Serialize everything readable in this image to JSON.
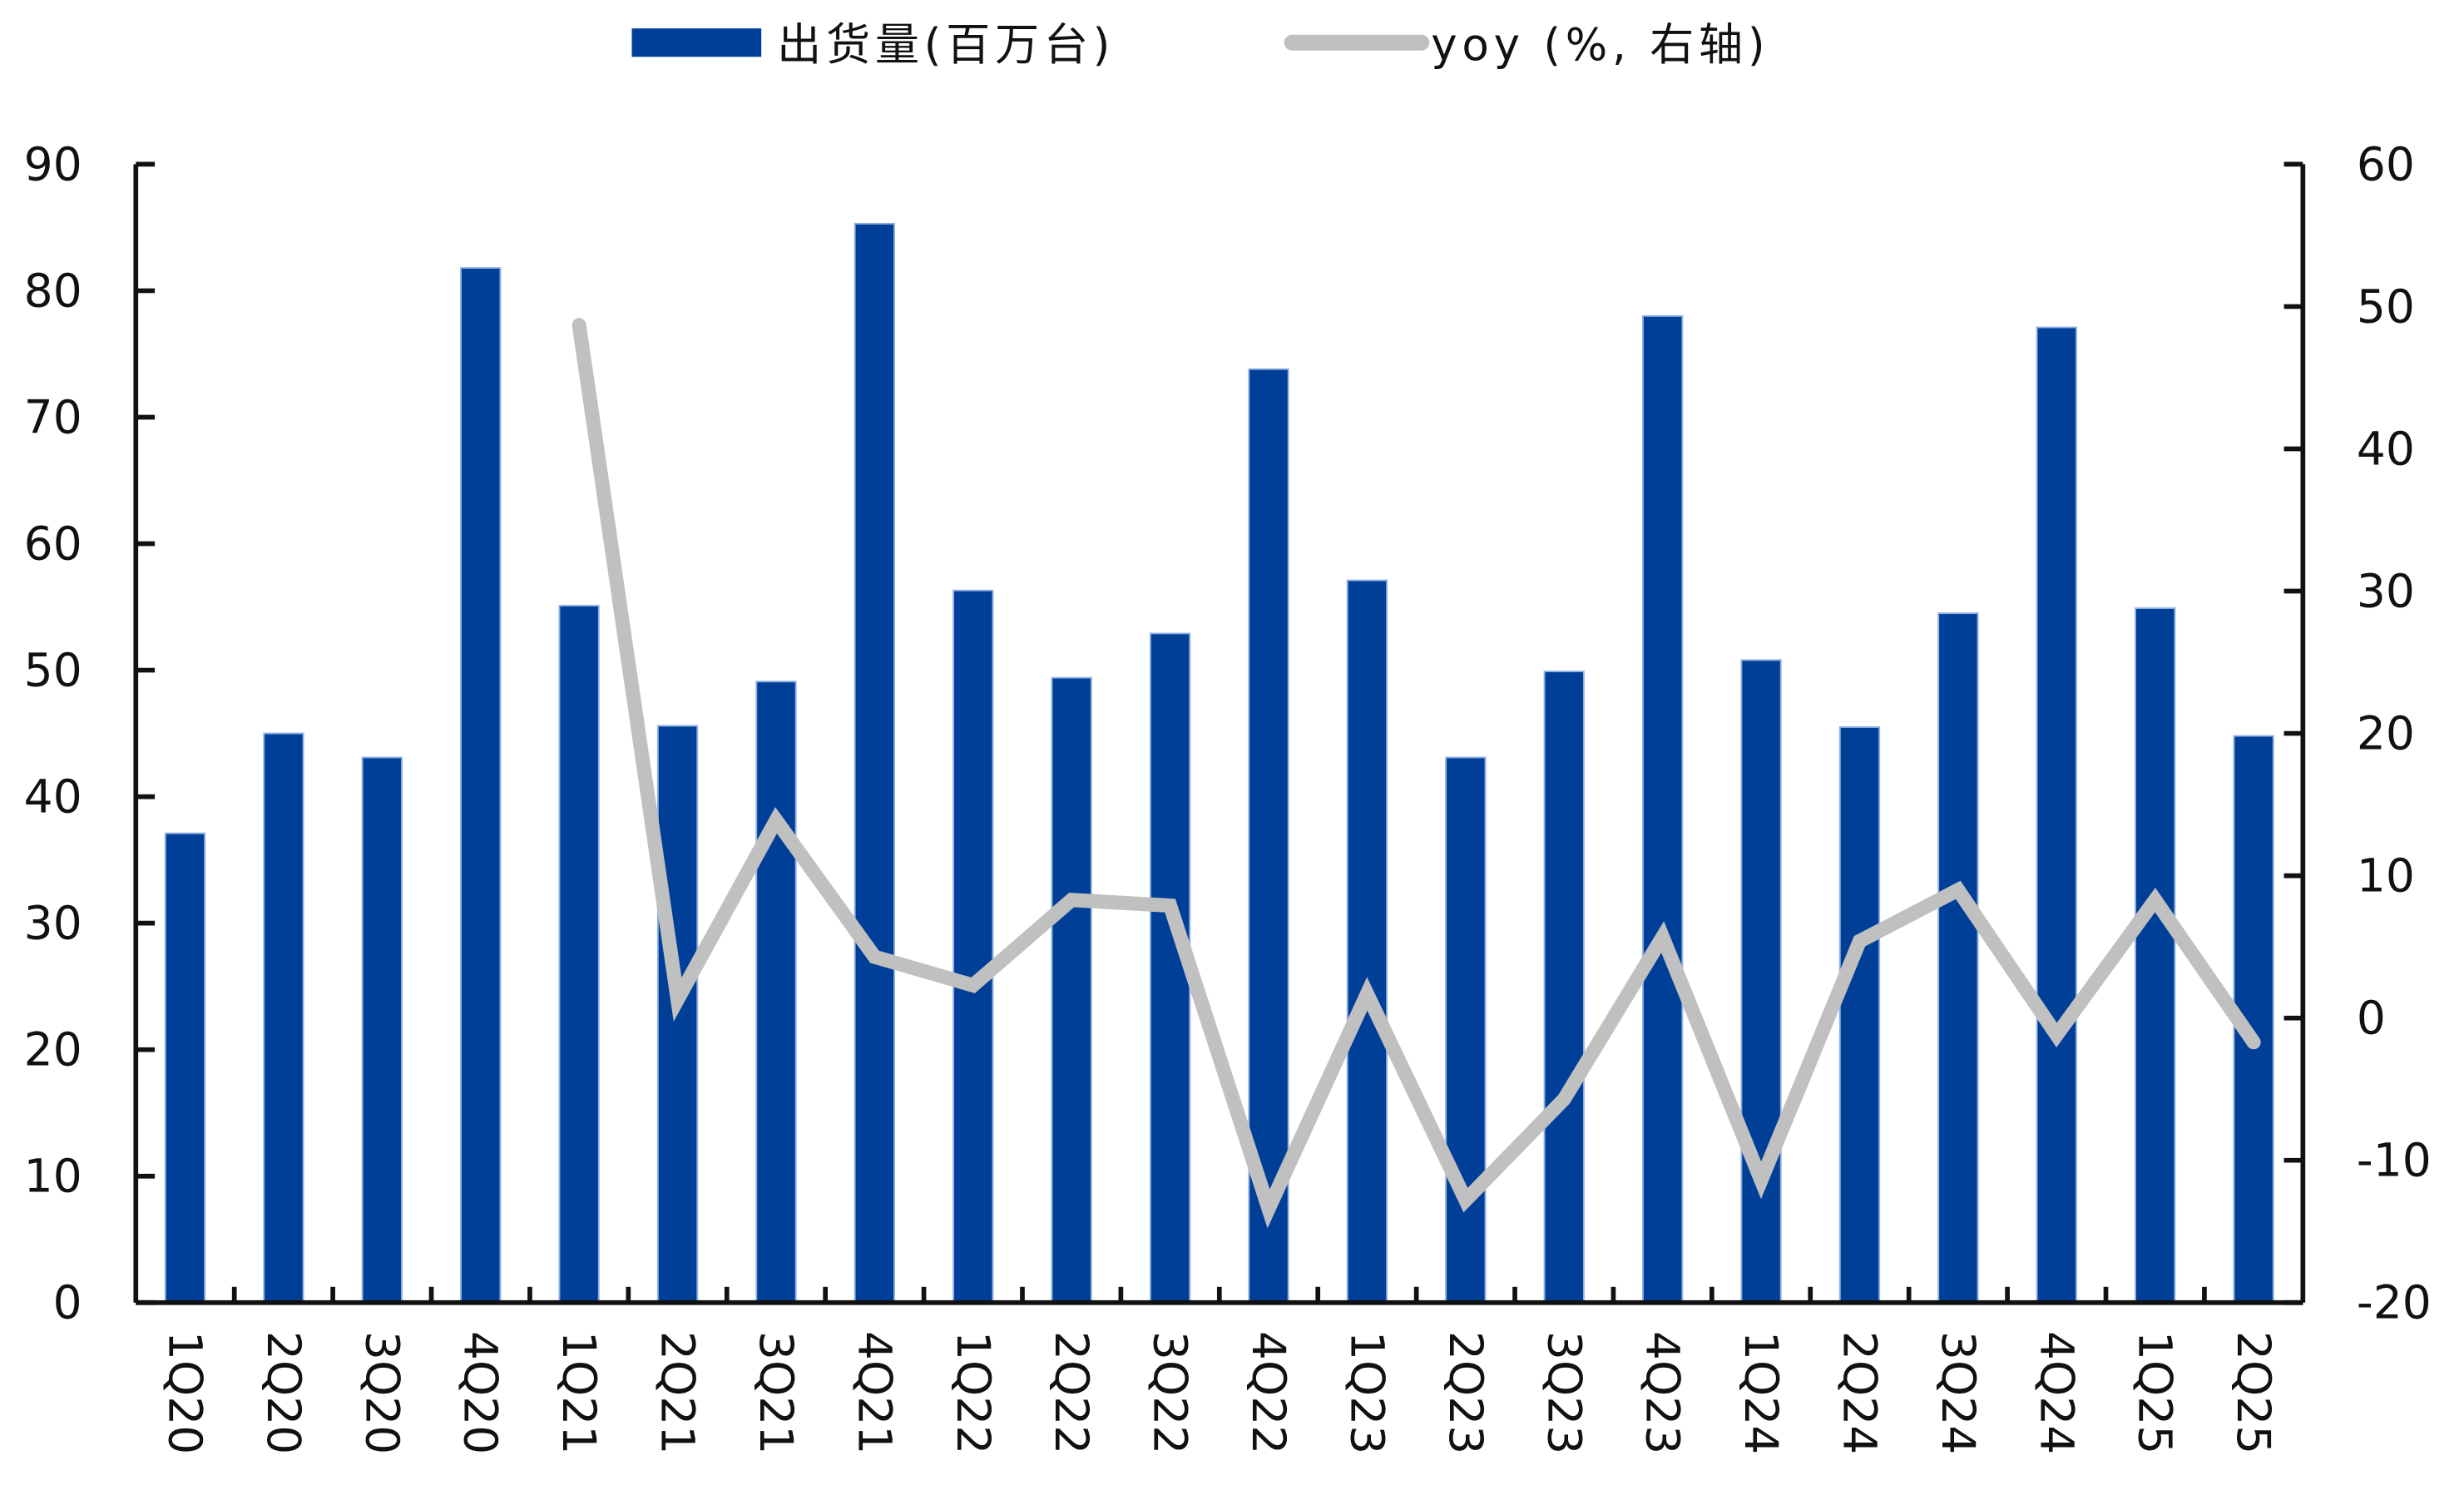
{
  "chart_data": {
    "type": "bar+line",
    "title": "",
    "legend": {
      "position": "top",
      "entries": [
        {
          "name": "出货量(百万台)",
          "type": "bar",
          "color": "#003f98"
        },
        {
          "name": "yoy (%, 右轴)",
          "type": "line",
          "color": "#c0c0c0"
        }
      ]
    },
    "categories": [
      "1Q20",
      "2Q20",
      "3Q20",
      "4Q20",
      "1Q21",
      "2Q21",
      "3Q21",
      "4Q21",
      "1Q22",
      "2Q22",
      "3Q22",
      "4Q22",
      "1Q23",
      "2Q23",
      "3Q23",
      "4Q23",
      "1Q24",
      "2Q24",
      "3Q24",
      "4Q24",
      "1Q25",
      "2Q25"
    ],
    "series": [
      {
        "name": "出货量(百万台)",
        "axis": "left",
        "type": "bar",
        "color": "#003f98",
        "values": [
          37.1,
          45.0,
          43.1,
          81.8,
          55.1,
          45.6,
          49.1,
          85.3,
          56.3,
          49.4,
          52.9,
          73.8,
          57.1,
          43.1,
          49.9,
          78.0,
          50.8,
          45.5,
          54.5,
          77.1,
          54.9,
          44.8
        ]
      },
      {
        "name": "yoy (%, 右轴)",
        "axis": "right",
        "type": "line",
        "color": "#c0c0c0",
        "values": [
          null,
          null,
          null,
          null,
          48.7,
          1.3,
          13.9,
          4.3,
          2.3,
          8.3,
          7.9,
          -13.4,
          1.7,
          -12.8,
          -5.7,
          5.7,
          -11.4,
          5.4,
          9.0,
          -1.2,
          8.3,
          -1.7
        ]
      }
    ],
    "y_left": {
      "label": "",
      "ylim": [
        0,
        90
      ],
      "ticks": [
        0,
        10,
        20,
        30,
        40,
        50,
        60,
        70,
        80,
        90
      ]
    },
    "y_right": {
      "label": "",
      "ylim": [
        -20,
        60
      ],
      "ticks": [
        -20,
        -10,
        0,
        10,
        20,
        30,
        40,
        50,
        60
      ]
    },
    "xlabel": "",
    "x_tick_rotation": 90,
    "grid": false
  }
}
